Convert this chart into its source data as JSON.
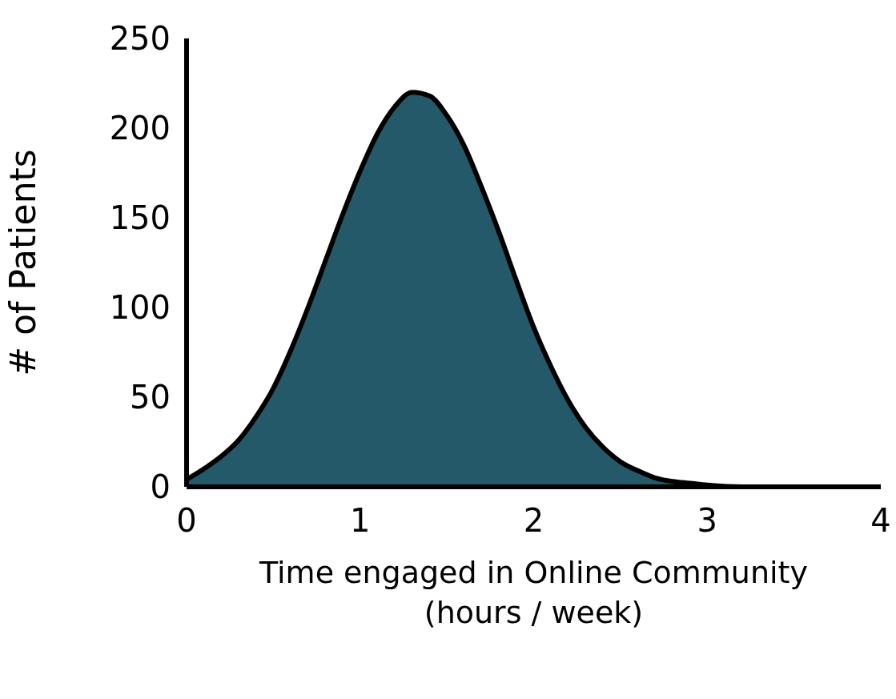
{
  "chart_data": {
    "type": "area",
    "xlabel": "Time engaged in Online Community\n(hours / week)",
    "ylabel": "# of Patients",
    "x": [
      0,
      0.1,
      0.2,
      0.3,
      0.4,
      0.5,
      0.6,
      0.7,
      0.8,
      0.9,
      1.0,
      1.1,
      1.2,
      1.3,
      1.4,
      1.5,
      1.6,
      1.7,
      1.8,
      1.9,
      2.0,
      2.1,
      2.2,
      2.3,
      2.4,
      2.5,
      2.6,
      2.7,
      2.8,
      2.9,
      3.0,
      3.2,
      3.4,
      3.6,
      3.8,
      4.0
    ],
    "values": [
      4,
      10,
      17,
      26,
      39,
      55,
      76,
      100,
      126,
      152,
      176,
      197,
      212,
      220,
      218,
      207,
      190,
      167,
      142,
      115,
      89,
      67,
      48,
      33,
      22,
      14,
      9,
      5,
      3,
      2,
      1,
      0,
      0,
      0,
      0,
      0
    ],
    "color": "#24596a",
    "xlim": [
      0,
      4
    ],
    "xticks": [
      0,
      1,
      2,
      3,
      4
    ],
    "ylim": [
      0,
      250
    ],
    "yticks": [
      0,
      50,
      100,
      150,
      200,
      250
    ]
  }
}
